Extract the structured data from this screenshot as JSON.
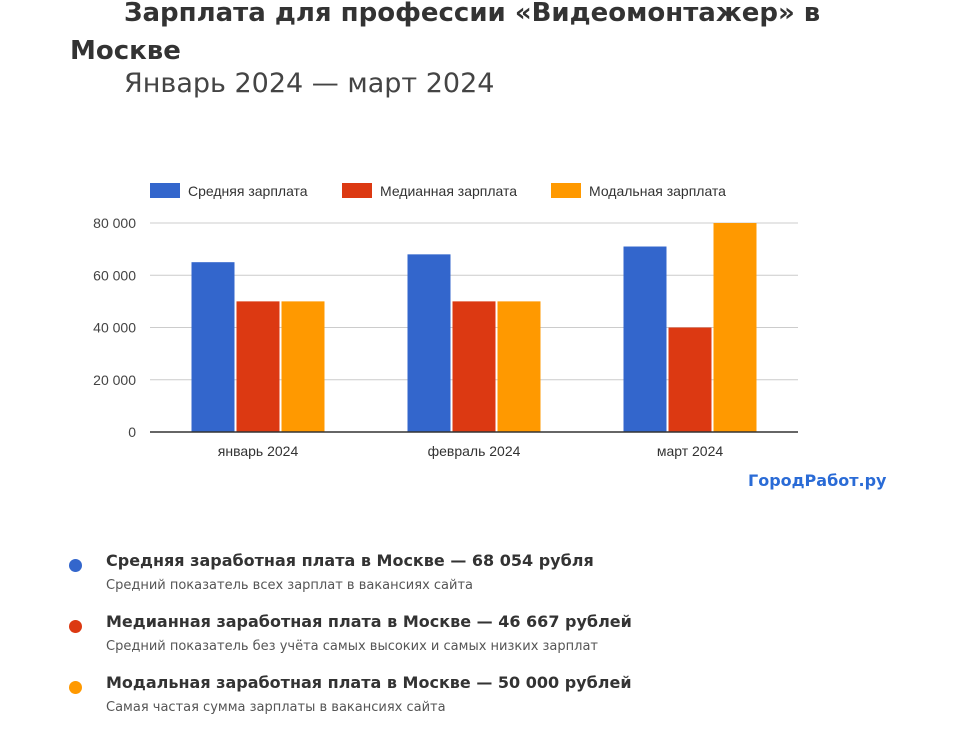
{
  "title": "Зарплата для профессии «Видеомонтажер» в Москве",
  "subtitle": "Январь 2024 — март 2024",
  "brand": "ГородРабот.ру",
  "colors": {
    "avg": "#3366cc",
    "median": "#dc3912",
    "mode": "#ff9900"
  },
  "chart_data": {
    "type": "bar",
    "categories": [
      "январь 2024",
      "февраль 2024",
      "март 2024"
    ],
    "series": [
      {
        "name": "Средняя зарплата",
        "color": "#3366cc",
        "values": [
          65000,
          68000,
          71000
        ]
      },
      {
        "name": "Медианная зарплата",
        "color": "#dc3912",
        "values": [
          50000,
          50000,
          40000
        ]
      },
      {
        "name": "Модальная зарплата",
        "color": "#ff9900",
        "values": [
          50000,
          50000,
          80000
        ]
      }
    ],
    "ylim": [
      0,
      80000
    ],
    "yticks": [
      "0",
      "20 000",
      "40 000",
      "60 000",
      "80 000"
    ],
    "grid": true,
    "legend": "top"
  },
  "notes": [
    {
      "color": "#3366cc",
      "headline": "Средняя заработная плата в Москве — 68 054 рубля",
      "sub": "Средний показатель всех зарплат в вакансиях сайта"
    },
    {
      "color": "#dc3912",
      "headline": "Медианная заработная плата в Москве — 46 667 рублей",
      "sub": "Средний показатель без учёта самых высоких и самых низких зарплат"
    },
    {
      "color": "#ff9900",
      "headline": "Модальная заработная плата в Москве — 50 000 рублей",
      "sub": "Самая частая сумма зарплаты в вакансиях сайта"
    }
  ]
}
